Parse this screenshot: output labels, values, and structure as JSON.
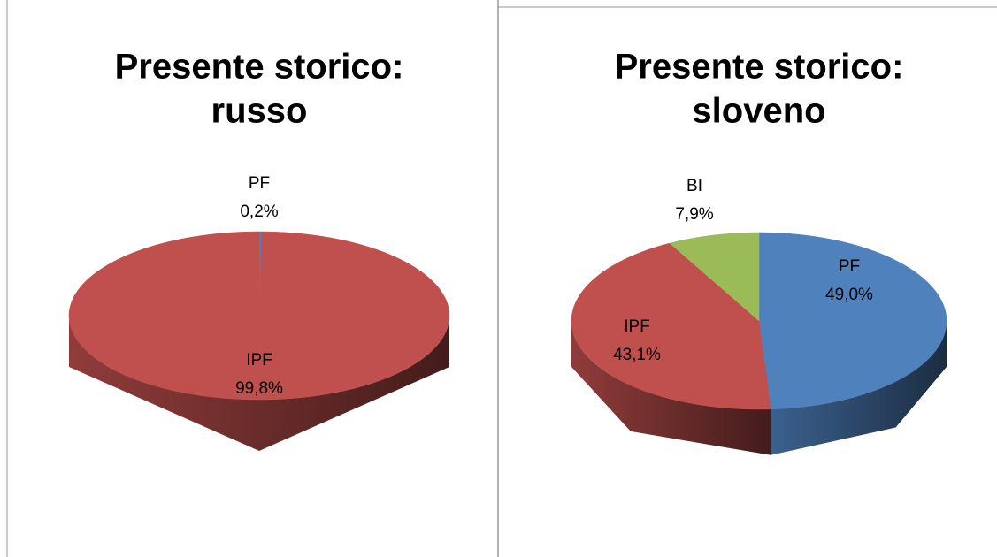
{
  "chart_data": [
    {
      "type": "pie",
      "title": [
        "Presente storico:",
        "russo"
      ],
      "categories": [
        "PF",
        "IPF"
      ],
      "values": [
        0.2,
        99.8
      ],
      "value_labels": [
        "0,2%",
        "99,8%"
      ],
      "colors": [
        "#4f81bd",
        "#c0504d"
      ]
    },
    {
      "type": "pie",
      "title": [
        "Presente storico:",
        "sloveno"
      ],
      "categories": [
        "PF",
        "IPF",
        "BI"
      ],
      "values": [
        49.0,
        43.1,
        7.9
      ],
      "value_labels": [
        "49,0%",
        "43,1%",
        "7,9%"
      ],
      "colors": [
        "#4f81bd",
        "#c0504d",
        "#9bbb59"
      ]
    }
  ]
}
